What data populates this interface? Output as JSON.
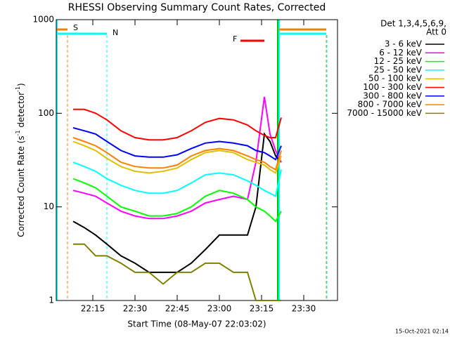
{
  "chart_data": {
    "type": "line",
    "title": "RHESSI Observing Summary Count Rates, Corrected",
    "y_label": [
      "Corrected Count Rate (s",
      "-1",
      " detector",
      "-1",
      ")"
    ],
    "x_label": "Start Time (08-May-07 22:03:02)",
    "legend_header": [
      "Det 1,3,4,5,6,9,",
      "Att 0"
    ],
    "timestamp": "15-Oct-2021 02:14",
    "annotations": [
      {
        "text": "S",
        "color": "#ff7f00"
      },
      {
        "text": "N",
        "color": "#00ffff"
      },
      {
        "text": "F",
        "color": "#ff0000"
      }
    ],
    "log_y": true,
    "xlim": [
      "22:02",
      "23:42"
    ],
    "xticks": [
      "22:15",
      "22:30",
      "22:45",
      "23:00",
      "23:15",
      "23:30"
    ],
    "ylim": [
      1,
      1000
    ],
    "yticks": [
      1,
      10,
      100,
      1000
    ],
    "x": [
      "22:08",
      "22:12",
      "22:16",
      "22:20",
      "22:25",
      "22:30",
      "22:35",
      "22:40",
      "22:45",
      "22:50",
      "22:55",
      "23:00",
      "23:05",
      "23:10",
      "23:13",
      "23:16",
      "23:18",
      "23:20",
      "23:22"
    ],
    "series": [
      {
        "name": "3 - 6 keV",
        "color": "#000000",
        "values": [
          7,
          6,
          5,
          4,
          3,
          2.5,
          2,
          2,
          2,
          2.5,
          3.5,
          5,
          5,
          5,
          10,
          60,
          50,
          35,
          30
        ]
      },
      {
        "name": "6 - 12 keV",
        "color": "#ff00ff",
        "values": [
          15,
          14,
          13,
          11,
          9,
          8,
          7.5,
          7.5,
          8,
          9,
          11,
          12,
          13,
          12,
          30,
          150,
          60,
          40,
          30
        ]
      },
      {
        "name": "12 - 25 keV",
        "color": "#00ff00",
        "values": [
          20,
          18,
          16,
          13,
          10,
          9,
          8,
          8,
          8.5,
          10,
          13,
          15,
          14,
          12,
          10,
          9,
          8,
          7,
          9
        ]
      },
      {
        "name": "25 - 50 keV",
        "color": "#00ffff",
        "values": [
          30,
          27,
          24,
          20,
          17,
          15,
          14,
          14,
          15,
          18,
          22,
          23,
          22,
          19,
          17,
          15,
          14,
          13,
          25
        ]
      },
      {
        "name": "50 - 100 keV",
        "color": "#e0c000",
        "values": [
          50,
          45,
          40,
          33,
          27,
          24,
          23,
          24,
          26,
          32,
          38,
          40,
          38,
          32,
          30,
          28,
          25,
          23,
          35
        ]
      },
      {
        "name": "100 - 300 keV",
        "color": "#ff0000",
        "values": [
          110,
          110,
          100,
          85,
          65,
          55,
          52,
          52,
          55,
          65,
          80,
          88,
          85,
          75,
          65,
          58,
          55,
          55,
          90
        ]
      },
      {
        "name": "300 - 800 keV",
        "color": "#0000ff",
        "values": [
          70,
          65,
          60,
          50,
          40,
          35,
          34,
          34,
          36,
          42,
          48,
          50,
          48,
          45,
          40,
          38,
          35,
          32,
          45
        ]
      },
      {
        "name": "800 - 7000 keV",
        "color": "#ff8000",
        "values": [
          55,
          50,
          45,
          38,
          30,
          27,
          26,
          26,
          28,
          35,
          40,
          42,
          40,
          35,
          32,
          30,
          27,
          25,
          40
        ]
      },
      {
        "name": "7000 - 15000 keV",
        "color": "#808000",
        "values": [
          4,
          4,
          3,
          3,
          2.5,
          2,
          2,
          1.5,
          2,
          2,
          2.5,
          2.5,
          2,
          2,
          1,
          1,
          1,
          1,
          1
        ]
      }
    ]
  }
}
